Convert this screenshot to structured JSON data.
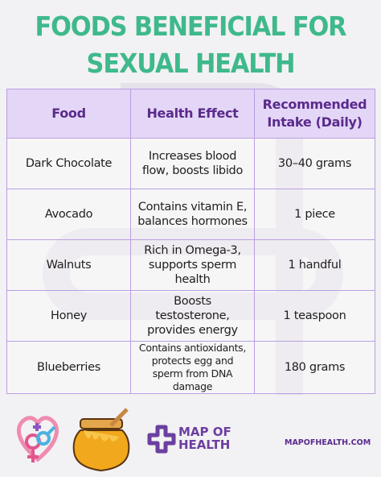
{
  "title": "FOODS BENEFICIAL FOR SEXUAL HEALTH",
  "table": {
    "header": [
      "Food",
      "Health Effect",
      "Recommended Intake (Daily)"
    ],
    "rows": [
      [
        "Dark Chocolate",
        "Increases blood flow, boosts libido",
        "30–40 grams"
      ],
      [
        "Avocado",
        "Contains vitamin E, balances hormones",
        "1 piece"
      ],
      [
        "Walnuts",
        "Rich in Omega-3, supports sperm health",
        "1 handful"
      ],
      [
        "Honey",
        "Boosts testosterone, provides energy",
        "1 teaspoon"
      ],
      [
        "Blueberries",
        "Contains antioxidants, protects egg and sperm from DNA damage",
        "180 grams"
      ]
    ]
  },
  "footer": {
    "logo": "MAP OF HEALTH",
    "website": "MAPOFHEALTH.COM"
  }
}
